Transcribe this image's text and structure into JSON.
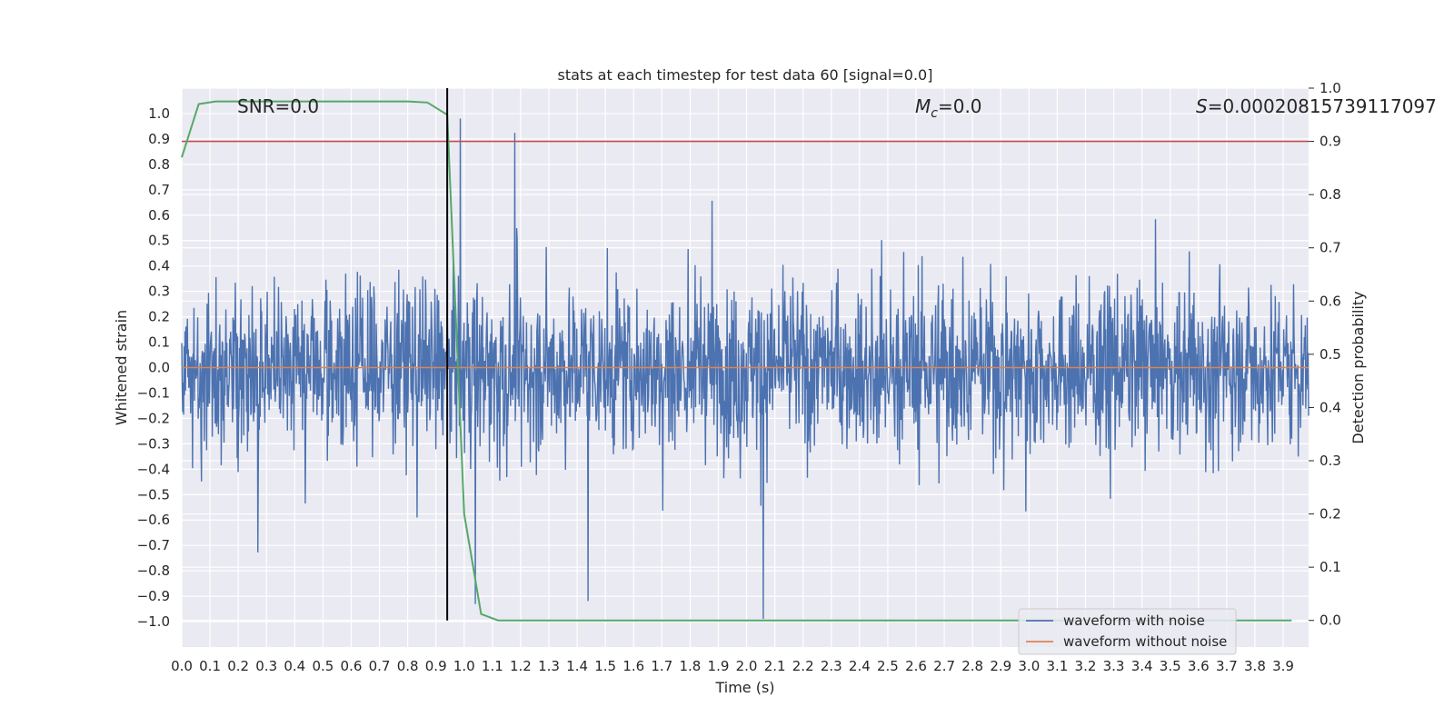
{
  "chart_data": {
    "type": "line",
    "title": "stats at each timestep for test data 60 [signal=0.0]",
    "xlabel": "Time (s)",
    "ylabel": "Whitened strain",
    "y2label": "Detection probability",
    "xlim": [
      0.0,
      3.99
    ],
    "ylim": [
      -1.1,
      1.1
    ],
    "y2lim": [
      -0.05,
      1.0
    ],
    "xticks": [
      "0.0",
      "0.1",
      "0.2",
      "0.3",
      "0.4",
      "0.5",
      "0.6",
      "0.7",
      "0.8",
      "0.9",
      "1.0",
      "1.1",
      "1.2",
      "1.3",
      "1.4",
      "1.5",
      "1.6",
      "1.7",
      "1.8",
      "1.9",
      "2.0",
      "2.1",
      "2.2",
      "2.3",
      "2.4",
      "2.5",
      "2.6",
      "2.7",
      "2.8",
      "2.9",
      "3.0",
      "3.1",
      "3.2",
      "3.3",
      "3.4",
      "3.5",
      "3.6",
      "3.7",
      "3.8",
      "3.9"
    ],
    "yticks": [
      "1.0",
      "0.9",
      "0.8",
      "0.7",
      "0.6",
      "0.5",
      "0.4",
      "0.3",
      "0.2",
      "0.1",
      "0.0",
      "-0.1",
      "-0.2",
      "-0.3",
      "-0.4",
      "-0.5",
      "-0.6",
      "-0.7",
      "-0.8",
      "-0.9",
      "-1.0"
    ],
    "y2ticks": [
      "0.0",
      "0.1",
      "0.2",
      "0.3",
      "0.4",
      "0.5",
      "0.6",
      "0.7",
      "0.8",
      "0.9",
      "1.0"
    ],
    "annotations": {
      "snr": "SNR=0.0",
      "mc_symbol": "M",
      "mc_sub": "c",
      "mc_value": "=0.0",
      "s_symbol": "S",
      "s_value": "=0.00020815739117097"
    },
    "threshold": 0.9,
    "marker_time": 0.94,
    "series": [
      {
        "name": "waveform with noise",
        "color": "#4c72b0",
        "amplitude_range": [
          -1.0,
          0.98
        ],
        "duration": 3.99
      },
      {
        "name": "waveform without noise",
        "color": "#dd8452",
        "value": 0.0
      }
    ],
    "detection_probability": {
      "color": "#55a868",
      "t": [
        0.0,
        0.06,
        0.12,
        0.2,
        0.3,
        0.4,
        0.5,
        0.6,
        0.7,
        0.8,
        0.87,
        0.94,
        1.0,
        1.06,
        1.12,
        1.2,
        1.5,
        2.0,
        2.5,
        3.0,
        3.5,
        3.93
      ],
      "p": [
        0.87,
        0.97,
        0.975,
        0.975,
        0.975,
        0.975,
        0.975,
        0.975,
        0.975,
        0.975,
        0.973,
        0.95,
        0.2,
        0.012,
        0.0,
        0.0,
        0.0,
        0.0,
        0.0,
        0.0,
        0.0,
        0.0
      ]
    },
    "threshold_color": "#c44e52",
    "legend": {
      "placement": "lower-right"
    }
  }
}
